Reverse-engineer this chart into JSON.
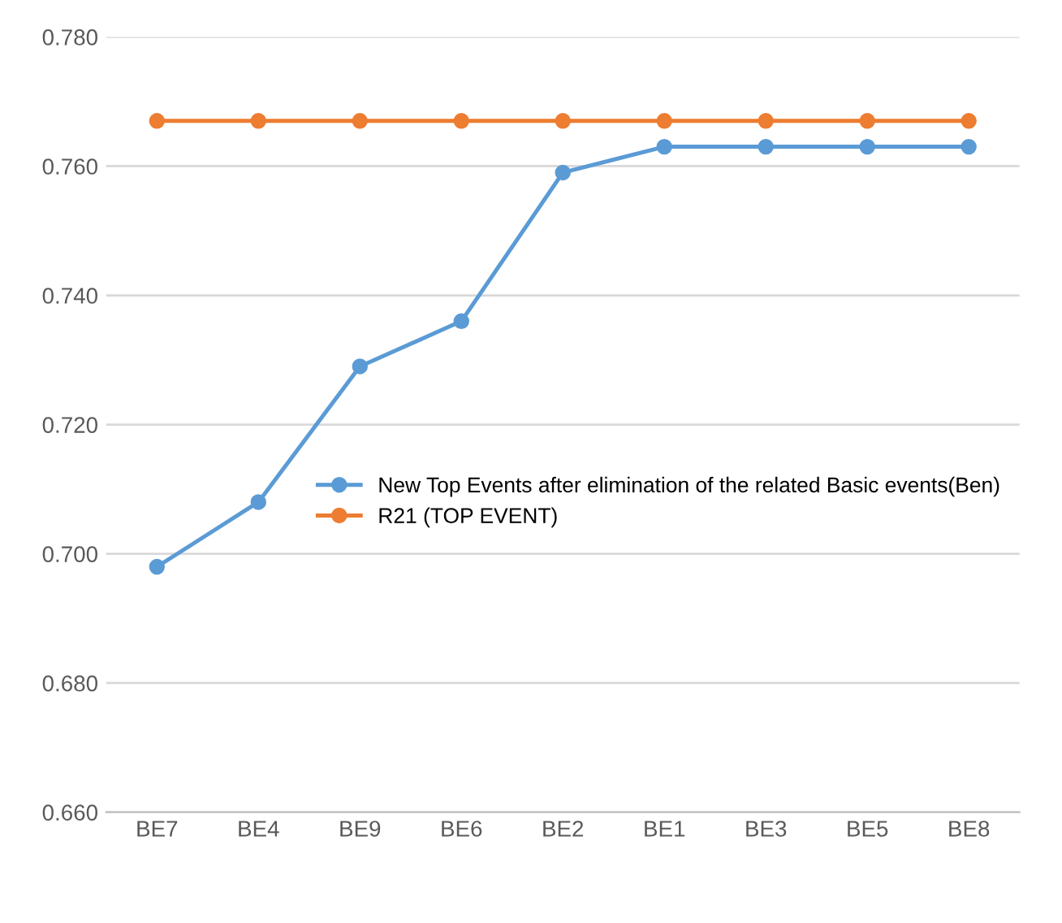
{
  "chart_data": {
    "type": "line",
    "categories": [
      "BE7",
      "BE4",
      "BE9",
      "BE6",
      "BE2",
      "BE1",
      "BE3",
      "BE5",
      "BE8"
    ],
    "series": [
      {
        "name": "New Top Events after elimination of the related Basic events(Ben)",
        "color": "#5b9bd5",
        "values": [
          0.698,
          0.708,
          0.729,
          0.736,
          0.759,
          0.763,
          0.763,
          0.763,
          0.763
        ]
      },
      {
        "name": "R21 (TOP EVENT)",
        "color": "#ed7d31",
        "values": [
          0.767,
          0.767,
          0.767,
          0.767,
          0.767,
          0.767,
          0.767,
          0.767,
          0.767
        ]
      }
    ],
    "ylim": [
      0.66,
      0.78
    ],
    "yticks": [
      {
        "value": 0.66,
        "label": "0.660"
      },
      {
        "value": 0.68,
        "label": "0.680"
      },
      {
        "value": 0.7,
        "label": "0.700"
      },
      {
        "value": 0.72,
        "label": "0.720"
      },
      {
        "value": 0.74,
        "label": "0.740"
      },
      {
        "value": 0.76,
        "label": "0.760"
      },
      {
        "value": 0.78,
        "label": "0.780"
      }
    ],
    "grid": "y",
    "legend": "center right",
    "marker": "circle",
    "line_style": "solid"
  }
}
